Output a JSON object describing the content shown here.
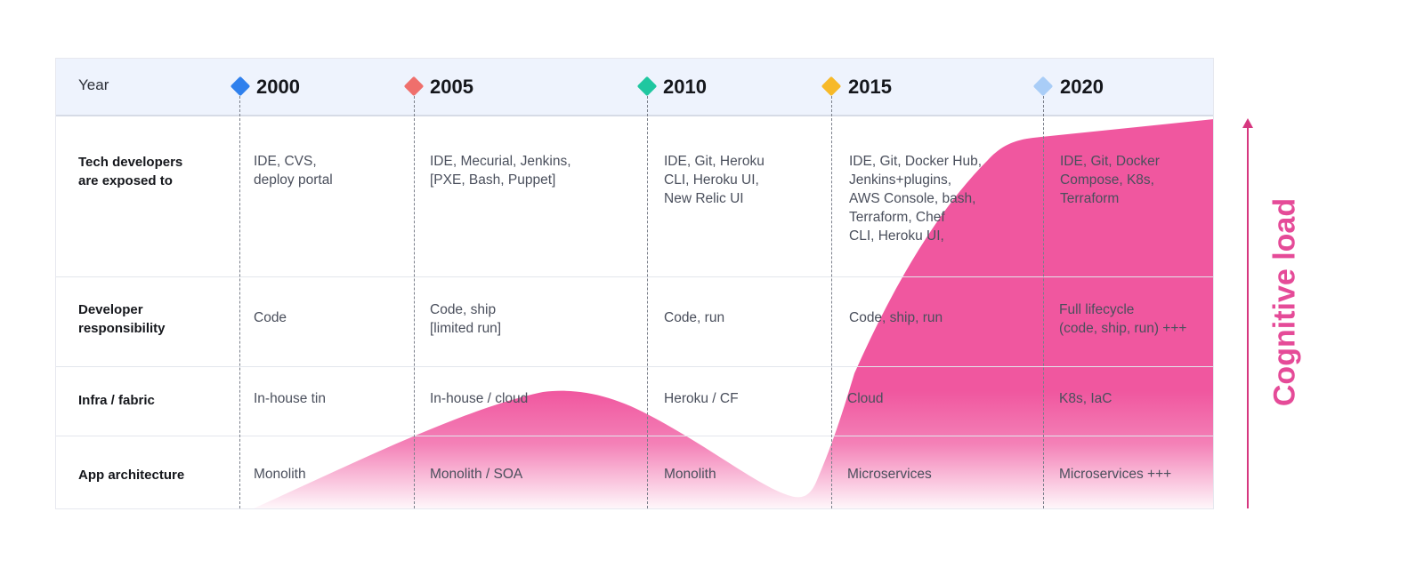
{
  "header": {
    "year_label": "Year",
    "years": [
      {
        "label": "2000",
        "color": "#2f80ed"
      },
      {
        "label": "2005",
        "color": "#ef6f6c"
      },
      {
        "label": "2010",
        "color": "#1fc7a0"
      },
      {
        "label": "2015",
        "color": "#f7b928"
      },
      {
        "label": "2020",
        "color": "#a9cdf7"
      }
    ]
  },
  "rows": [
    {
      "label": "Tech developers\nare exposed to",
      "cells": [
        "IDE, CVS,\ndeploy portal",
        "IDE, Mecurial, Jenkins,\n[PXE, Bash, Puppet]",
        "IDE, Git, Heroku\nCLI, Heroku UI,\nNew Relic UI",
        "IDE, Git, Docker Hub,\nJenkins+plugins,\nAWS Console, bash,\nTerraform, Chef\nCLI, Heroku UI,",
        "IDE, Git, Docker\nCompose, K8s,\nTerraform"
      ]
    },
    {
      "label": "Developer\nresponsibility",
      "cells": [
        "Code",
        "Code, ship\n[limited run]",
        "Code, run",
        "Code, ship, run",
        "Full lifecycle\n(code, ship, run) +++"
      ]
    },
    {
      "label": "Infra / fabric",
      "cells": [
        "In-house tin",
        "In-house / cloud",
        "Heroku / CF",
        "Cloud",
        "K8s, IaC"
      ]
    },
    {
      "label": "App architecture",
      "cells": [
        "Monolith",
        "Monolith / SOA",
        "Monolith",
        "Microservices",
        "Microservices +++"
      ]
    }
  ],
  "axis": {
    "label": "Cognitive load",
    "color": "#e54b98"
  },
  "curve_color": "#f0579f"
}
